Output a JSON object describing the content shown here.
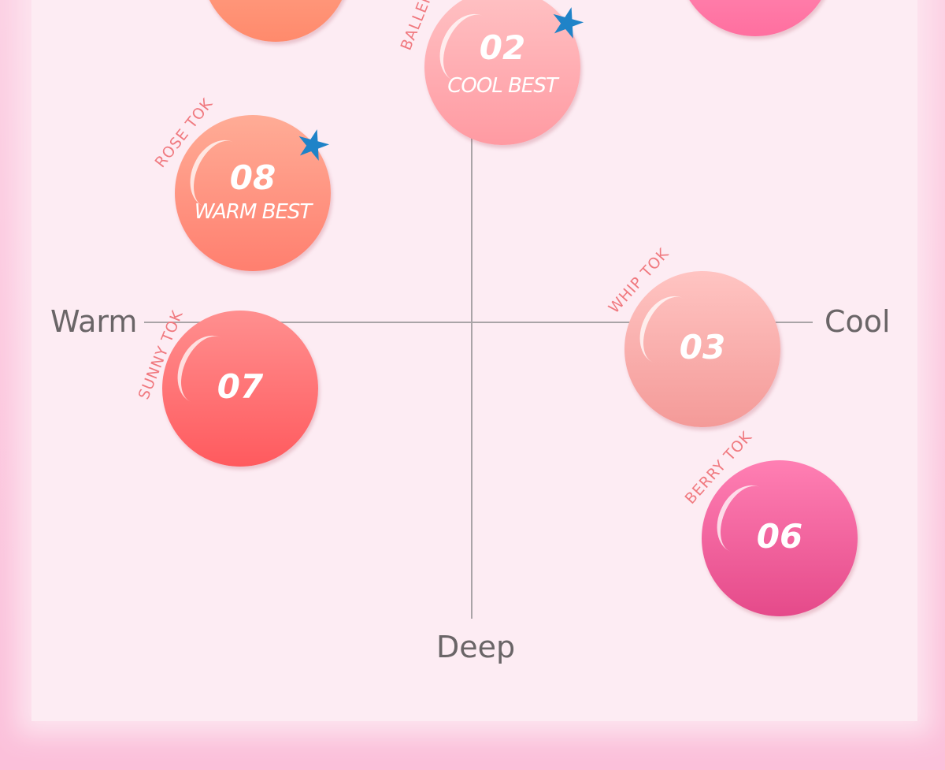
{
  "axes": {
    "left": "Warm",
    "right": "Cool",
    "bottom": "Deep"
  },
  "shades": [
    {
      "number": "",
      "name": "",
      "color_top": "#ffb49a",
      "color_bottom": "#ff8a6c"
    },
    {
      "number": "",
      "name": "",
      "color_top": "#ffa4c8",
      "color_bottom": "#ff6f9f"
    },
    {
      "number": "02",
      "badge": "COOL BEST",
      "name": "BALLER",
      "color_top": "#ffc2c4",
      "color_bottom": "#ff9aa2",
      "best": true
    },
    {
      "number": "08",
      "badge": "WARM BEST",
      "name": "ROSE TOK",
      "color_top": "#ffac96",
      "color_bottom": "#ff7f6f",
      "best": true
    },
    {
      "number": "07",
      "name": "SUNNY TOK",
      "color_top": "#ff8f8f",
      "color_bottom": "#ff5a5e"
    },
    {
      "number": "03",
      "name": "WHIP TOK",
      "color_top": "#ffc4c2",
      "color_bottom": "#f49a98"
    },
    {
      "number": "06",
      "name": "BERRY TOK",
      "color_top": "#ff7fb3",
      "color_bottom": "#e54a8a"
    }
  ],
  "colors": {
    "star": "#1f83c8",
    "tag": "#f0797f",
    "background": "#fdecf3",
    "border": "#fbc4dc"
  }
}
